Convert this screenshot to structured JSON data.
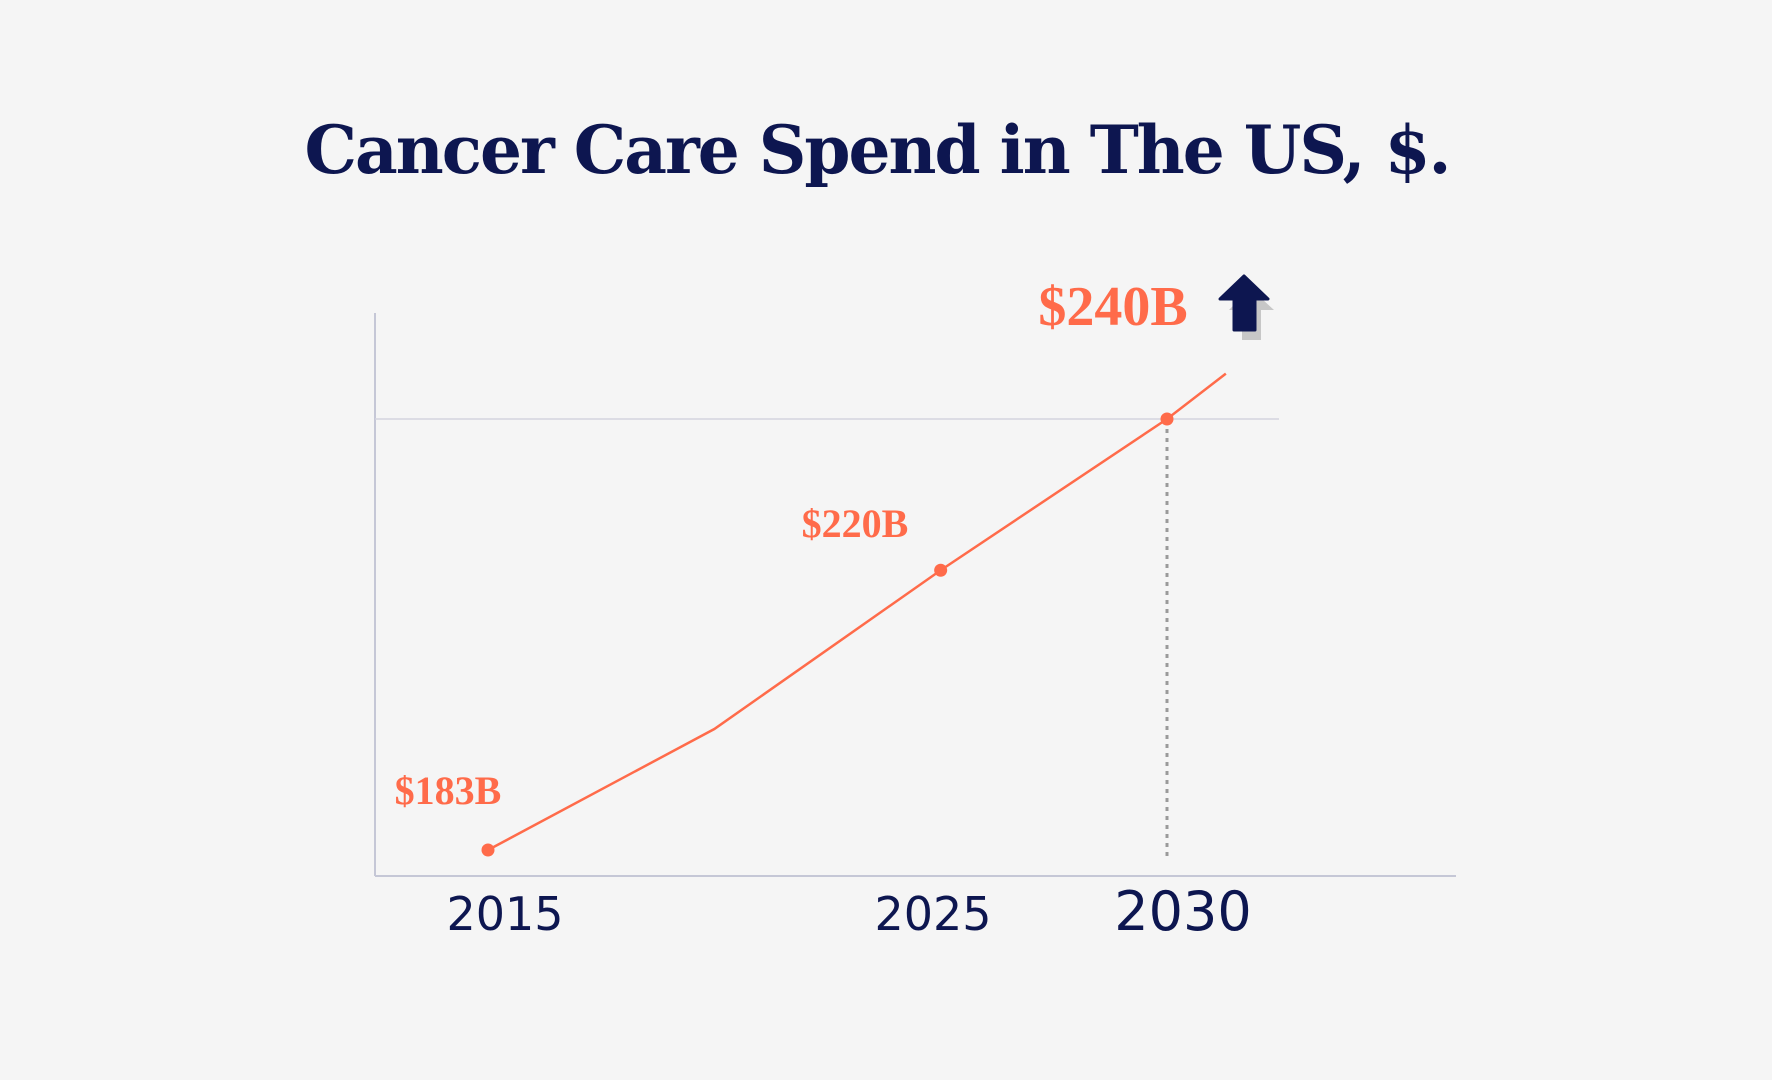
{
  "chart_data": {
    "type": "line",
    "title": "Cancer Care Spend in The US, $.",
    "xlabel": "",
    "ylabel": "",
    "x_ticks": [
      "2015",
      "2025",
      "2030"
    ],
    "series": [
      {
        "points": [
          {
            "x": 2015,
            "y": 183,
            "label": "$183B",
            "marker": true
          },
          {
            "x": 2020,
            "y": 199,
            "marker": false
          },
          {
            "x": 2025,
            "y": 220,
            "label": "$220B",
            "marker": true
          },
          {
            "x": 2030,
            "y": 240,
            "label": "$240B",
            "marker": true
          },
          {
            "x": 2031.3,
            "y": 246,
            "marker": false
          }
        ]
      }
    ],
    "xlim": [
      2012.8,
      2033
    ],
    "ylim": [
      180,
      262
    ],
    "reference_line_y": 240,
    "reference_drop_x": 2030,
    "grid": false,
    "annotation_icon": "arrow-up-icon",
    "colors": {
      "line": "#ff6b4a",
      "text": "#0d1650",
      "axis": "#c5c7d6",
      "dotted": "#9a9a9a",
      "background": "#f5f5f5"
    }
  }
}
